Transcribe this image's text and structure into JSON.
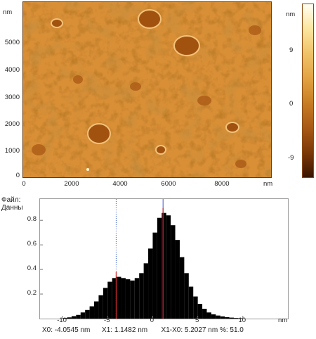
{
  "afm_image": {
    "y_unit": "nm",
    "x_unit": "nm",
    "y_ticks": [
      "5000",
      "4000",
      "3000",
      "2000",
      "1000",
      "0"
    ],
    "x_ticks": [
      "0",
      "2000",
      "4000",
      "6000",
      "8000"
    ],
    "colorbar": {
      "unit": "nm",
      "labels": [
        "9",
        "0",
        "-9"
      ],
      "colors": [
        "#fffef2",
        "#f0c46a",
        "#c67b22",
        "#7a3806",
        "#3a1500"
      ]
    }
  },
  "side_panel": {
    "file_label": "Файл:",
    "data_label": "Данны"
  },
  "histogram": {
    "x_unit": "nm",
    "cursor_readout": {
      "x0": "X0: -4.0545 nm",
      "x1": "X1: 1.1482 nm",
      "diff": "X1-X0: 5.2027 nm",
      "percent": "%: 51.0"
    },
    "cursor_colors": {
      "dotted": "#3355cc",
      "solid": "#cc2222"
    }
  },
  "chart_data": {
    "type": "bar",
    "xlabel": "nm",
    "ylabel": "",
    "xlim": [
      -12.5,
      15
    ],
    "ylim": [
      0,
      0.95
    ],
    "x_ticks": [
      -10,
      -5,
      0,
      5,
      10
    ],
    "y_ticks": [
      0.2,
      0.4,
      0.6,
      0.8
    ],
    "x_tick_labels": [
      "-10",
      "-5",
      "0",
      "5",
      "10"
    ],
    "y_tick_labels": [
      "0.2",
      "0.4",
      "0.6",
      "0.8"
    ],
    "cursors": [
      {
        "x": -4.0545,
        "style": "dotted",
        "color": "#3355cc",
        "marker_to": 0.38
      },
      {
        "x": 1.1482,
        "style": "solid",
        "color": "#cc2222",
        "marker_to": 0.9
      }
    ],
    "x": [
      -9.75,
      -9.25,
      -8.75,
      -8.25,
      -7.75,
      -7.25,
      -6.75,
      -6.25,
      -5.75,
      -5.25,
      -4.75,
      -4.25,
      -3.75,
      -3.25,
      -2.75,
      -2.25,
      -1.75,
      -1.25,
      -0.75,
      -0.25,
      0.25,
      0.75,
      1.25,
      1.75,
      2.25,
      2.75,
      3.25,
      3.75,
      4.25,
      4.75,
      5.25,
      5.75,
      6.25,
      6.75,
      7.25,
      7.75,
      8.25,
      8.75,
      9.25,
      9.75
    ],
    "values": [
      0.005,
      0.01,
      0.02,
      0.03,
      0.05,
      0.07,
      0.1,
      0.14,
      0.19,
      0.25,
      0.3,
      0.33,
      0.34,
      0.33,
      0.32,
      0.31,
      0.33,
      0.37,
      0.45,
      0.57,
      0.7,
      0.82,
      0.86,
      0.84,
      0.76,
      0.64,
      0.5,
      0.37,
      0.26,
      0.18,
      0.12,
      0.08,
      0.05,
      0.035,
      0.025,
      0.018,
      0.012,
      0.008,
      0.005,
      0.003
    ]
  }
}
